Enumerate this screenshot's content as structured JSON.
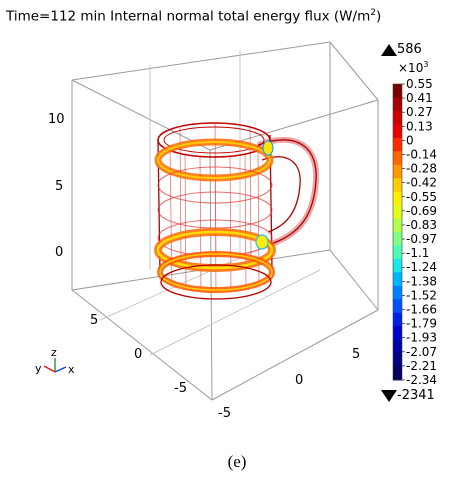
{
  "title": {
    "prefix": "Time=112 min Internal normal total energy flux (W/m",
    "sup": "2",
    "suffix": ")"
  },
  "colorbar": {
    "max_label": "586",
    "scale_base": "×10",
    "scale_exp": "3",
    "min_label": "-2341",
    "ticks": [
      "0.55",
      "0.41",
      "0.27",
      "0.13",
      "0",
      "-0.14",
      "-0.28",
      "-0.42",
      "-0.55",
      "-0.69",
      "-0.83",
      "-0.97",
      "-1.1",
      "-1.24",
      "-1.38",
      "-1.52",
      "-1.66",
      "-1.79",
      "-1.93",
      "-2.07",
      "-2.21",
      "-2.34"
    ],
    "colors": [
      "#7a0000",
      "#a50000",
      "#cc0000",
      "#e60000",
      "#ff2a00",
      "#ff6600",
      "#ff9900",
      "#ffcc00",
      "#ffee00",
      "#e6ff1a",
      "#b3ff4d",
      "#80ff80",
      "#4dffb3",
      "#1ae6e6",
      "#00b3ff",
      "#0080ff",
      "#0050ff",
      "#0020e6",
      "#0000cc",
      "#0000a0",
      "#000080",
      "#000060"
    ]
  },
  "axes": {
    "z_ticks": [
      "10",
      "5",
      "0"
    ],
    "y_ticks": [
      "5",
      "0",
      "-5"
    ],
    "x_ticks": [
      "5",
      "0",
      "-5"
    ]
  },
  "triad": {
    "y": "y",
    "z": "z",
    "x": "x"
  },
  "caption": "(e)",
  "icons": {
    "max": "triangle-up-icon",
    "min": "triangle-down-icon",
    "triad": "axis-triad-icon"
  }
}
